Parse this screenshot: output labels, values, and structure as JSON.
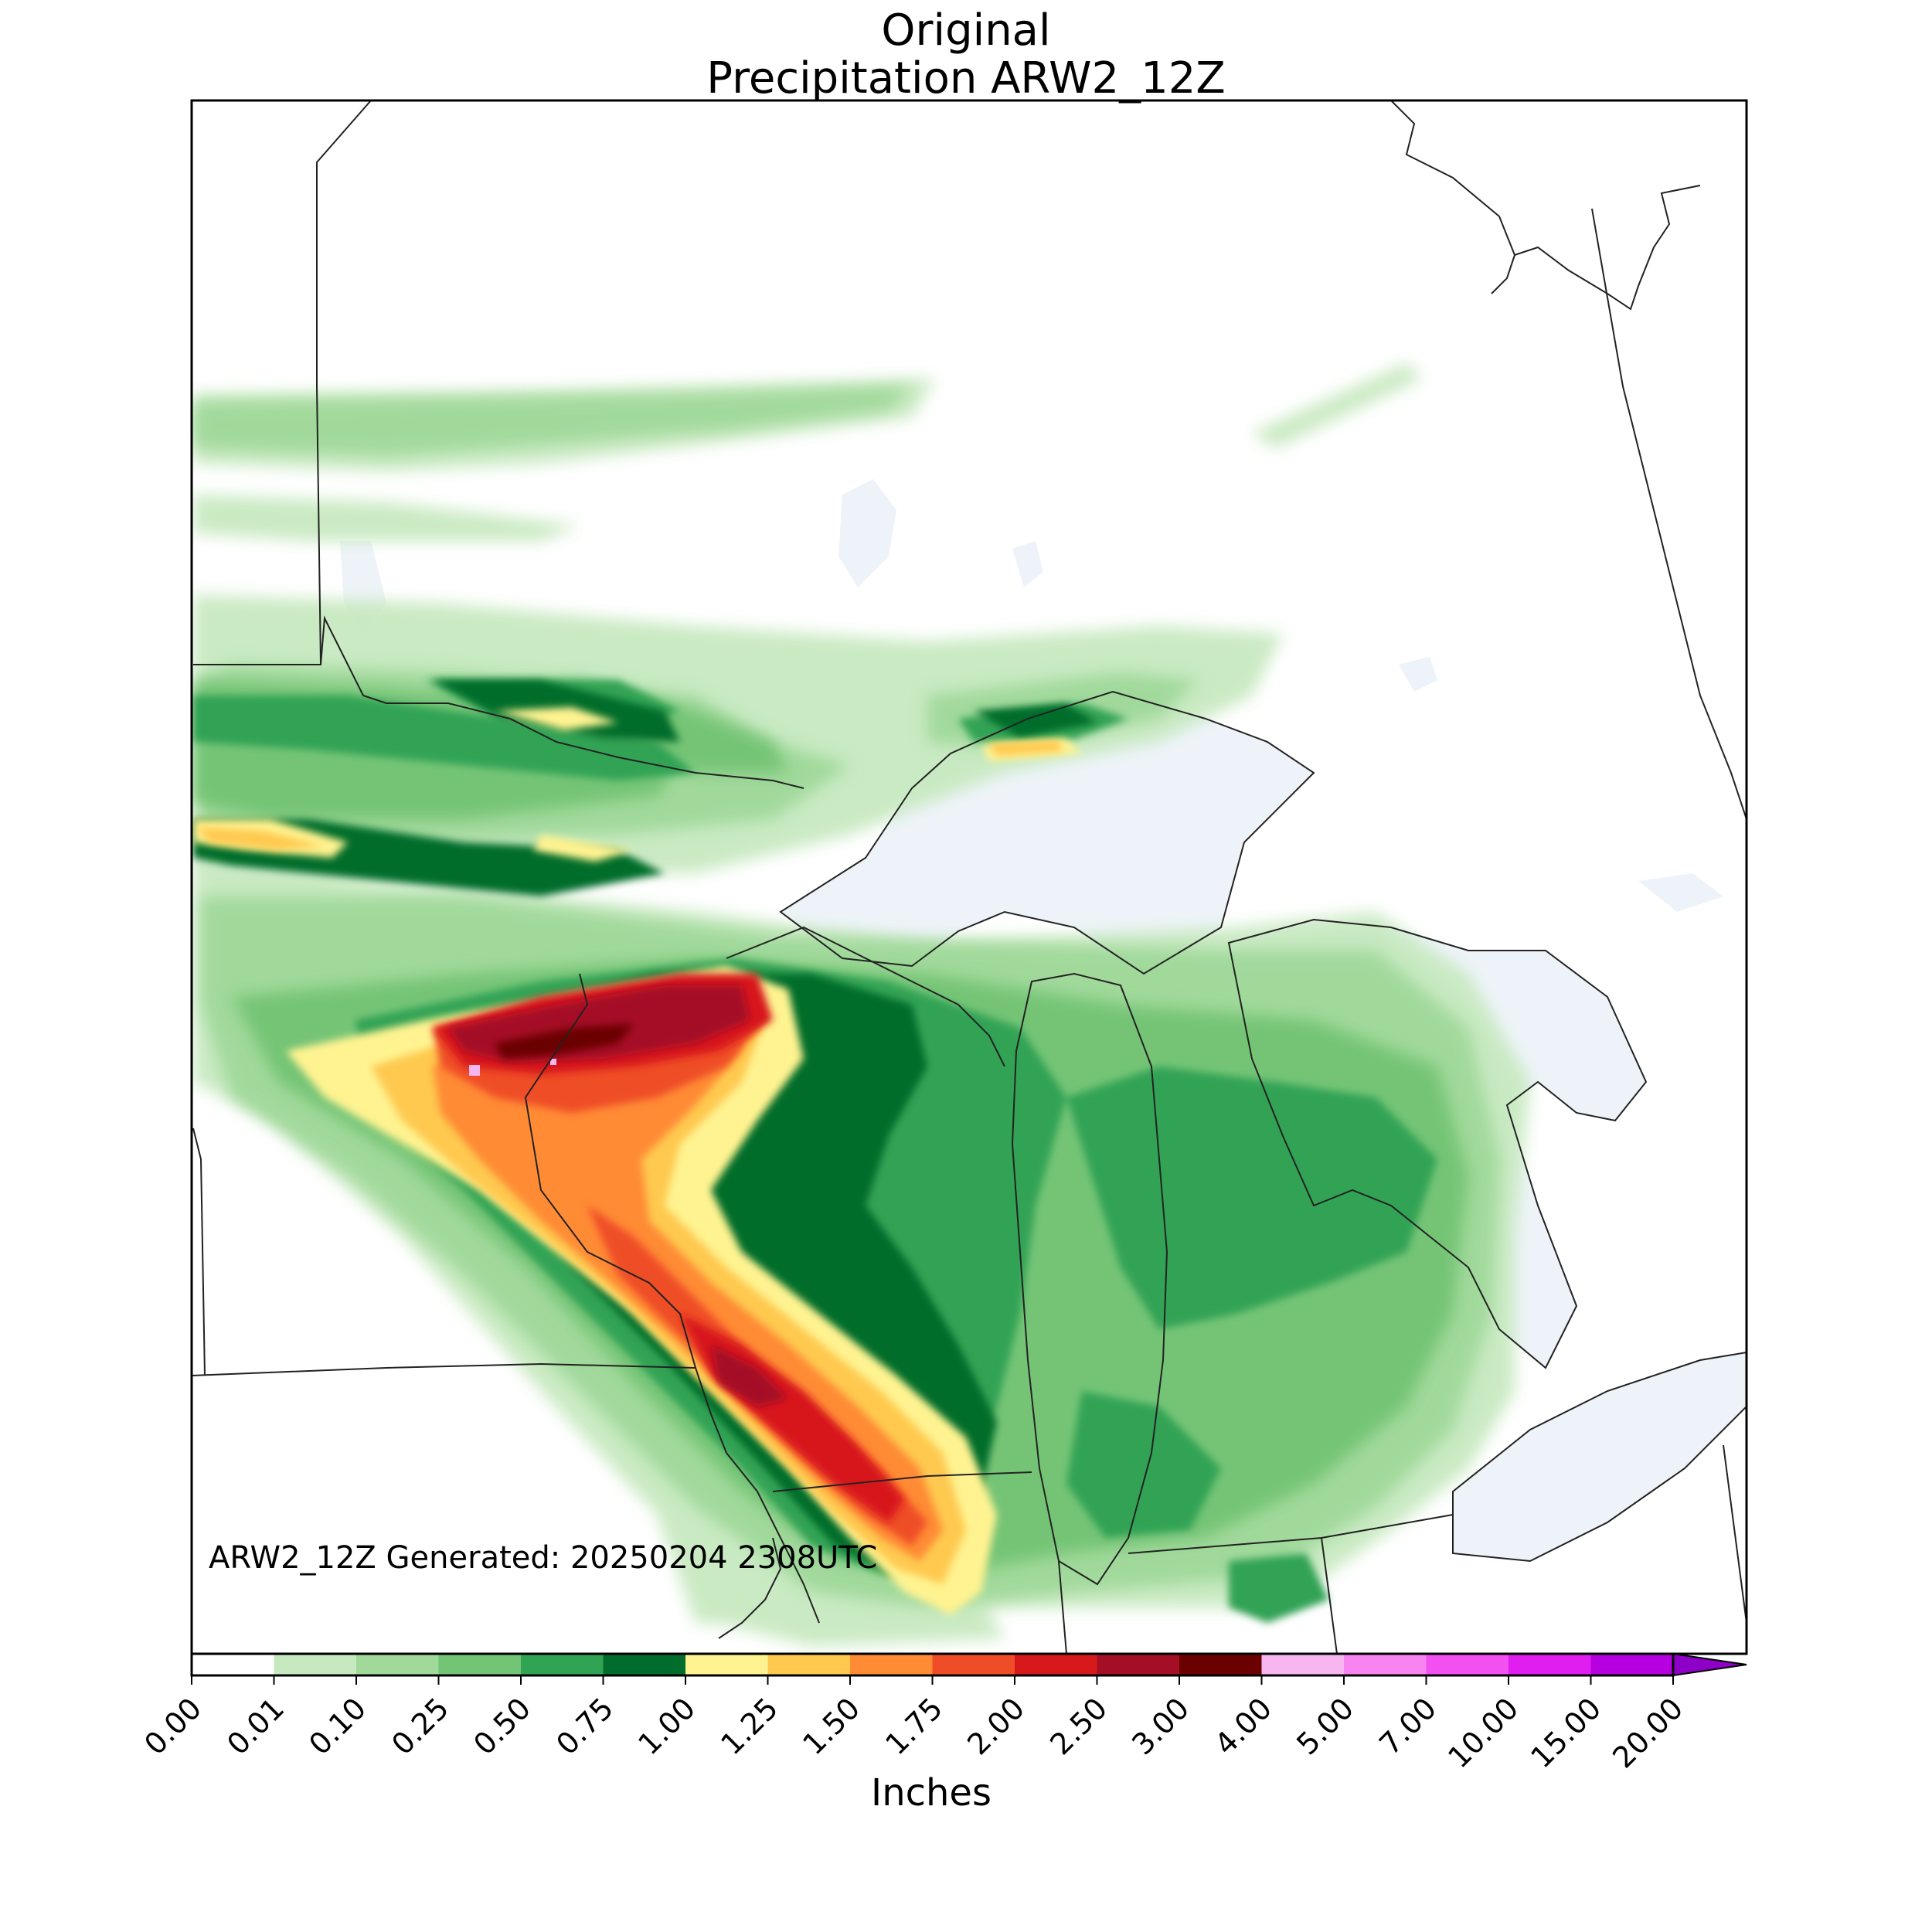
{
  "title": {
    "line1": "Original",
    "line2": "Precipitation ARW2_12Z"
  },
  "stamp": "ARW2_12Z Generated: 20250204 2308UTC",
  "legend": {
    "unit": "Inches",
    "ticks": [
      "0.00",
      "0.01",
      "0.10",
      "0.25",
      "0.50",
      "0.75",
      "1.00",
      "1.25",
      "1.50",
      "1.75",
      "2.00",
      "2.50",
      "3.00",
      "4.00",
      "5.00",
      "7.00",
      "10.00",
      "15.00",
      "20.00"
    ],
    "colors": [
      "#ffffff",
      "#c7e9c0",
      "#a1d99b",
      "#74c476",
      "#31a354",
      "#006d2c",
      "#fff391",
      "#ffc94f",
      "#ff8b35",
      "#ef4d27",
      "#d7191c",
      "#a50f26",
      "#6b0000",
      "#f7b6f0",
      "#f784f0",
      "#f250f0",
      "#e01ef0",
      "#b700e0",
      "#8e00c8"
    ],
    "extend_color": "#4b0060"
  },
  "map": {
    "water_color": "#eef3f9",
    "region": "Upper Midwest / Great Lakes"
  }
}
